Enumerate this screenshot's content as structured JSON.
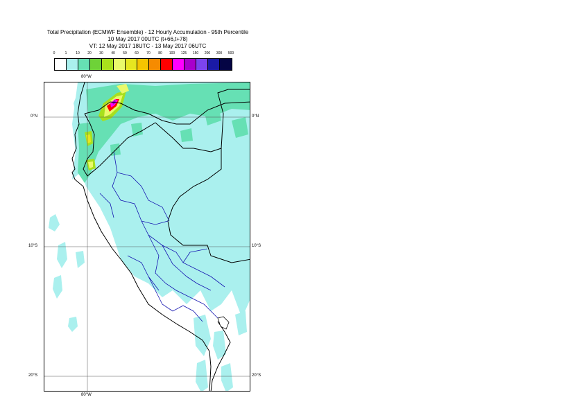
{
  "title": {
    "line1": "Total Precipitation (ECMWF Ensemble) - 12 Hourly Accumulation - 95th Percentile",
    "line2": "10 May 2017 00UTC (t+66,t+78)",
    "line3": "VT: 12 May 2017 18UTC - 13 May 2017 06UTC"
  },
  "legend": {
    "labels": [
      "0",
      "1",
      "10",
      "20",
      "30",
      "40",
      "50",
      "60",
      "70",
      "80",
      "100",
      "125",
      "150",
      "200",
      "300",
      "500"
    ],
    "colors": [
      "#ffffff",
      "#aaf0ee",
      "#66e0b4",
      "#6ed238",
      "#a8e01c",
      "#eaf96a",
      "#e6e620",
      "#f5c400",
      "#f68b00",
      "#ff0000",
      "#ff00ff",
      "#a800cc",
      "#7b44ee",
      "#1a1aa6",
      "#050544"
    ]
  },
  "axes": {
    "top_lon": "80°W",
    "bottom_lon": "80°W",
    "lat_left": [
      "0°N",
      "10°S",
      "20°S"
    ],
    "lat_right": [
      "0°N",
      "10°S",
      "20°S"
    ]
  }
}
